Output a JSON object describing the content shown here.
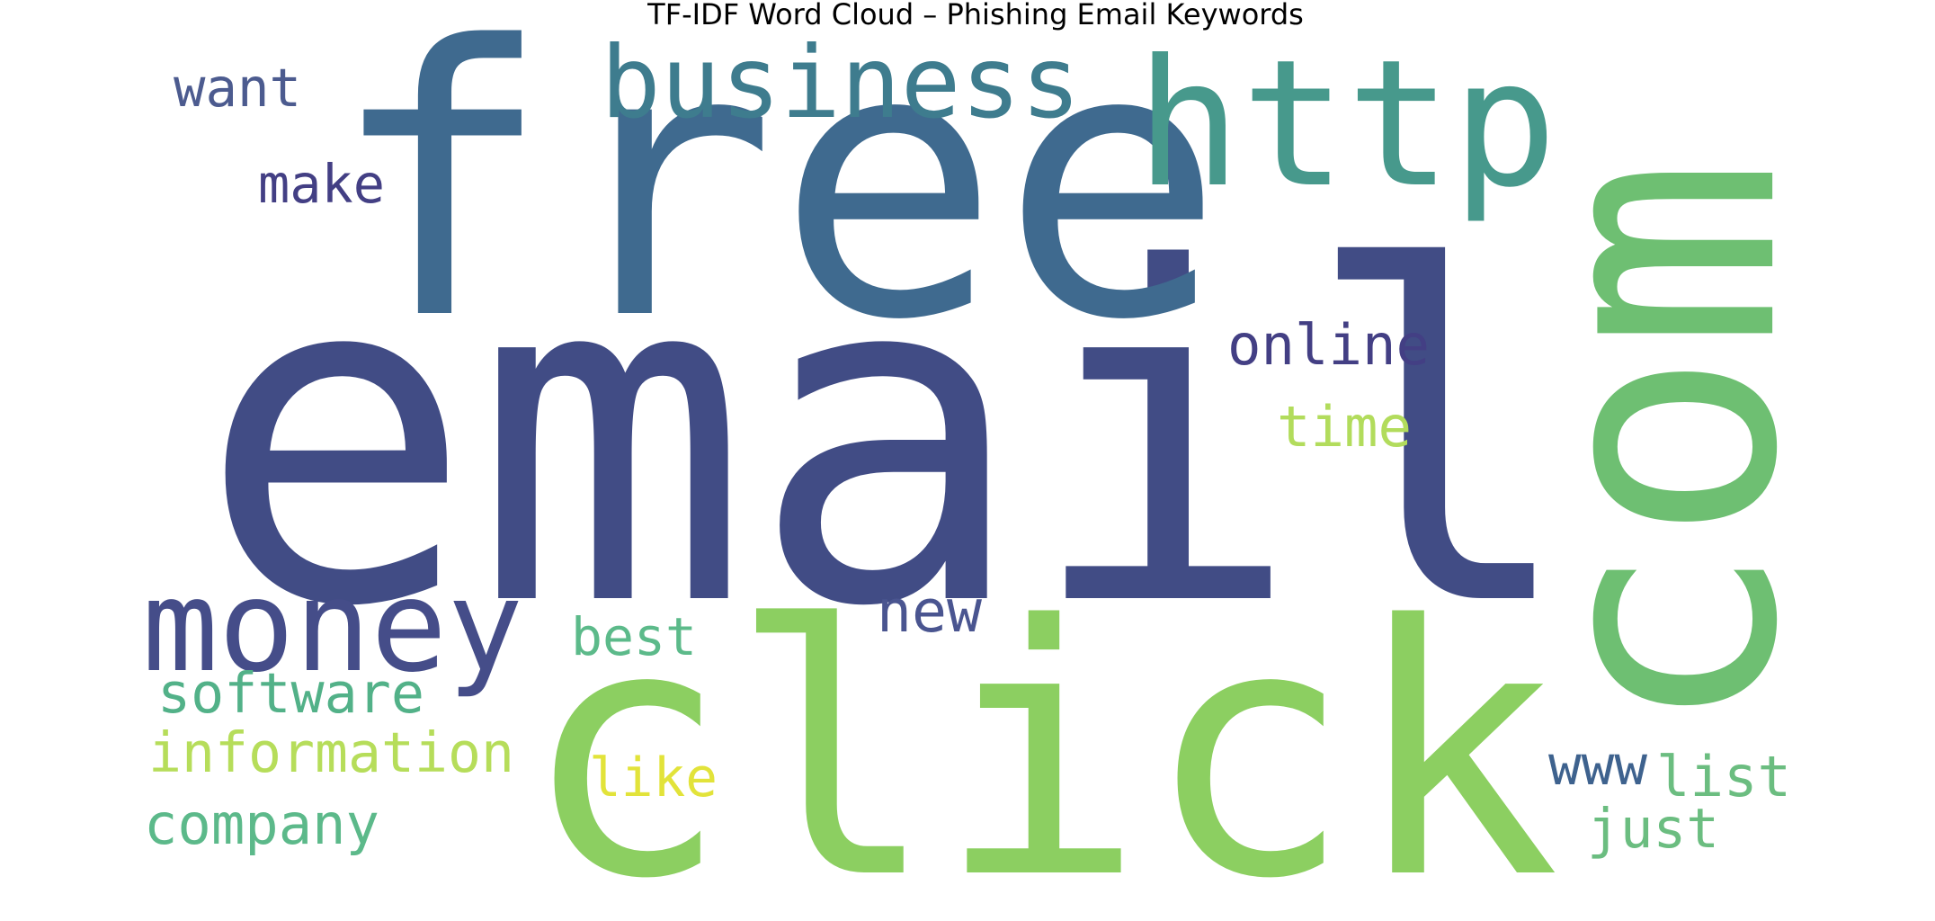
{
  "chart_data": {
    "type": "wordcloud",
    "title": "TF-IDF Word Cloud – Phishing Email Keywords",
    "words": [
      {
        "text": "email",
        "color": "#414c85"
      },
      {
        "text": "free",
        "color": "#3f6a8f"
      },
      {
        "text": "click",
        "color": "#8ccf61"
      },
      {
        "text": "com",
        "color": "#6ebf72"
      },
      {
        "text": "http",
        "color": "#47998c"
      },
      {
        "text": "business",
        "color": "#3e7c8e"
      },
      {
        "text": "money",
        "color": "#454d89"
      },
      {
        "text": "online",
        "color": "#433f84"
      },
      {
        "text": "software",
        "color": "#52b188"
      },
      {
        "text": "information",
        "color": "#b6dd5a"
      },
      {
        "text": "company",
        "color": "#5cb98a"
      },
      {
        "text": "time",
        "color": "#b2dc5c"
      },
      {
        "text": "best",
        "color": "#5cba8a"
      },
      {
        "text": "like",
        "color": "#e2e33a"
      },
      {
        "text": "want",
        "color": "#4c5b8f"
      },
      {
        "text": "make",
        "color": "#433f84"
      },
      {
        "text": "new",
        "color": "#4a5590"
      },
      {
        "text": "list",
        "color": "#6bbd80"
      },
      {
        "text": "just",
        "color": "#6bbd80"
      },
      {
        "text": "www",
        "color": "#3e628e"
      }
    ]
  }
}
